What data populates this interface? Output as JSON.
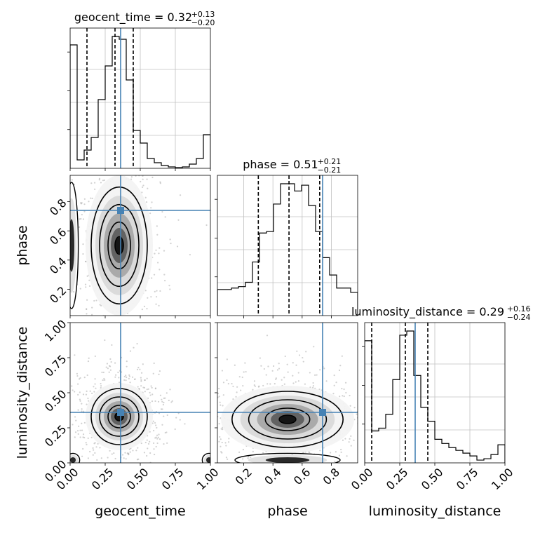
{
  "chart_data": {
    "type": "corner",
    "parameters": [
      "geocent_time",
      "phase",
      "luminosity_distance"
    ],
    "truths": {
      "geocent_time": 0.36,
      "phase": 0.74,
      "luminosity_distance": 0.36
    },
    "colors": {
      "truth": "#4682b4",
      "hist": "#000000",
      "grid": "#c0c0c0",
      "scatter": "#9a9a9a"
    },
    "ranges": {
      "geocent_time": [
        0,
        1
      ],
      "phase": [
        0.02,
        0.98
      ],
      "luminosity_distance": [
        0,
        1
      ]
    },
    "ticks": {
      "geocent_time": [
        "0.00",
        "0.25",
        "0.50",
        "0.75",
        "1.00"
      ],
      "phase": [
        "0.2",
        "0.4",
        "0.6",
        "0.8"
      ],
      "luminosity_distance": [
        "0.00",
        "0.25",
        "0.50",
        "0.75",
        "1.00"
      ]
    },
    "titles": {
      "geocent_time": {
        "main": "geocent_time = 0.32",
        "sup": "+0.13",
        "sub": "−0.20"
      },
      "phase": {
        "main": "phase = 0.51",
        "sup": "+0.21",
        "sub": "−0.21"
      },
      "luminosity_distance": {
        "main": "luminosity_distance = 0.29",
        "sup": "+0.16",
        "sub": "−0.24"
      }
    },
    "quantiles": {
      "geocent_time": [
        0.12,
        0.32,
        0.45
      ],
      "phase": [
        0.3,
        0.51,
        0.72
      ],
      "luminosity_distance": [
        0.05,
        0.29,
        0.45
      ]
    },
    "histograms": {
      "geocent_time": {
        "edges": [
          0,
          0.05,
          0.1,
          0.15,
          0.2,
          0.25,
          0.3,
          0.35,
          0.4,
          0.45,
          0.5,
          0.55,
          0.6,
          0.65,
          0.7,
          0.75,
          0.8,
          0.85,
          0.9,
          0.95,
          1.0
        ],
        "counts": [
          0.88,
          0.06,
          0.13,
          0.22,
          0.49,
          0.73,
          0.94,
          0.92,
          0.63,
          0.27,
          0.18,
          0.07,
          0.04,
          0.02,
          0.01,
          0.005,
          0.01,
          0.03,
          0.07,
          0.24
        ]
      },
      "phase": {
        "edges": [
          0.02,
          0.068,
          0.116,
          0.164,
          0.212,
          0.26,
          0.308,
          0.356,
          0.404,
          0.452,
          0.5,
          0.548,
          0.596,
          0.644,
          0.692,
          0.74,
          0.788,
          0.836,
          0.884,
          0.932,
          0.98
        ],
        "counts": [
          0.18,
          0.18,
          0.19,
          0.2,
          0.23,
          0.37,
          0.57,
          0.58,
          0.77,
          0.91,
          0.91,
          0.86,
          0.9,
          0.76,
          0.58,
          0.4,
          0.28,
          0.19,
          0.19,
          0.16
        ]
      },
      "luminosity_distance": {
        "edges": [
          0,
          0.05,
          0.1,
          0.15,
          0.2,
          0.25,
          0.3,
          0.35,
          0.4,
          0.45,
          0.5,
          0.55,
          0.6,
          0.65,
          0.7,
          0.75,
          0.8,
          0.85,
          0.9,
          0.95,
          1.0
        ],
        "counts": [
          0.88,
          0.23,
          0.25,
          0.35,
          0.6,
          0.92,
          0.95,
          0.63,
          0.4,
          0.3,
          0.17,
          0.14,
          0.11,
          0.09,
          0.07,
          0.05,
          0.02,
          0.03,
          0.06,
          0.13
        ]
      }
    }
  }
}
